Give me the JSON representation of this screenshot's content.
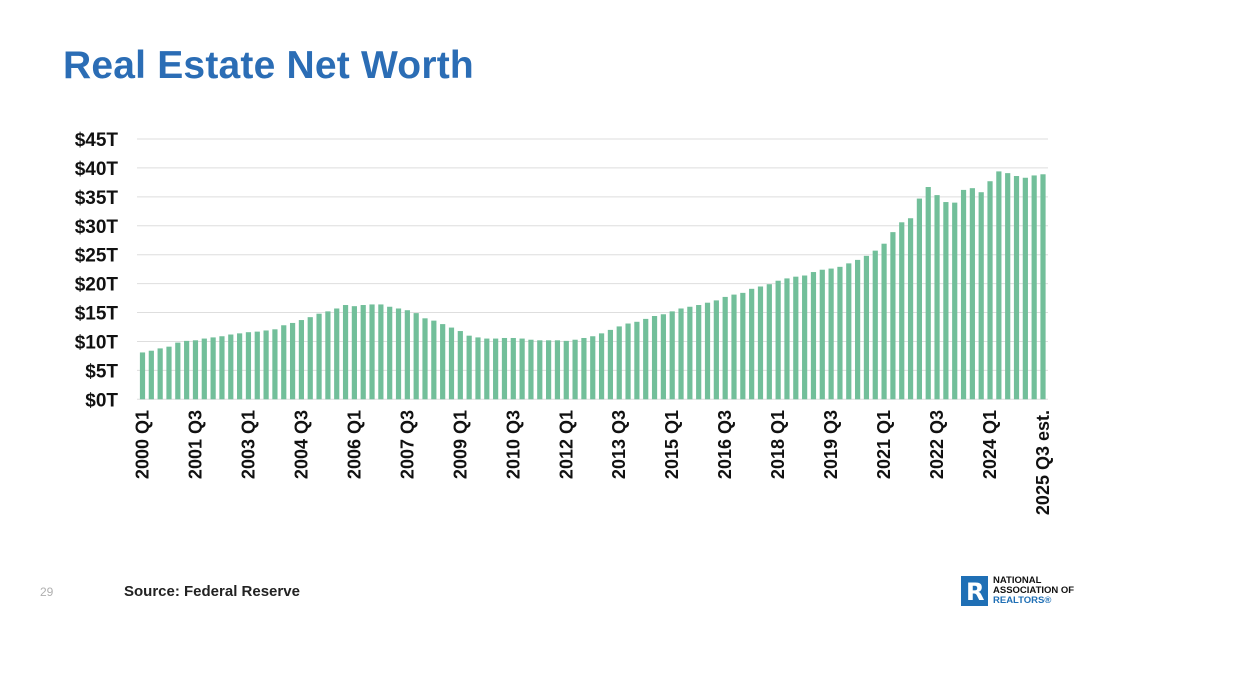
{
  "page_number": "29",
  "source": "Source: Federal Reserve",
  "logo": {
    "letter": "R",
    "line1": "NATIONAL",
    "line2": "ASSOCIATION OF",
    "line3": "REALTORS®"
  },
  "colors": {
    "title": "#2b6db5",
    "bar": "#72bf9a",
    "grid": "#dedede",
    "logo": "#1f6fb5"
  },
  "chart_data": {
    "type": "bar",
    "title": "Real Estate Net Worth",
    "xlabel": "",
    "ylabel": "",
    "ylim": [
      0,
      45
    ],
    "grid": true,
    "y_ticks": [
      0,
      5,
      10,
      15,
      20,
      25,
      30,
      35,
      40,
      45
    ],
    "y_tick_labels": [
      "$0T",
      "$5T",
      "$10T",
      "$15T",
      "$20T",
      "$25T",
      "$30T",
      "$35T",
      "$40T",
      "$45T"
    ],
    "x_tick_labels": [
      "2000 Q1",
      "2001 Q3",
      "2003 Q1",
      "2004 Q3",
      "2006 Q1",
      "2007 Q3",
      "2009 Q1",
      "2010 Q3",
      "2012 Q1",
      "2013 Q3",
      "2015 Q1",
      "2016 Q3",
      "2018 Q1",
      "2019 Q3",
      "2021 Q1",
      "2022 Q3",
      "2024 Q1",
      "2025 Q3 est."
    ],
    "unit": "trillion USD",
    "values": [
      8.1,
      8.4,
      8.8,
      9.1,
      9.8,
      10.1,
      10.2,
      10.5,
      10.7,
      10.9,
      11.2,
      11.4,
      11.6,
      11.7,
      11.9,
      12.1,
      12.8,
      13.2,
      13.7,
      14.2,
      14.8,
      15.2,
      15.7,
      16.3,
      16.1,
      16.3,
      16.4,
      16.4,
      16.0,
      15.7,
      15.4,
      14.9,
      14.0,
      13.6,
      13.0,
      12.4,
      11.8,
      11.0,
      10.7,
      10.5,
      10.5,
      10.6,
      10.6,
      10.5,
      10.3,
      10.2,
      10.2,
      10.2,
      10.1,
      10.3,
      10.6,
      10.9,
      11.4,
      12.0,
      12.6,
      13.1,
      13.4,
      13.9,
      14.4,
      14.7,
      15.2,
      15.7,
      16.0,
      16.3,
      16.7,
      17.1,
      17.7,
      18.1,
      18.4,
      19.1,
      19.5,
      19.9,
      20.5,
      20.9,
      21.2,
      21.4,
      22.0,
      22.4,
      22.6,
      22.9,
      23.5,
      24.1,
      24.8,
      25.7,
      26.9,
      28.9,
      30.6,
      31.3,
      34.7,
      36.7,
      35.3,
      34.1,
      34.0,
      36.2,
      36.5,
      35.8,
      37.7,
      39.4,
      39.1,
      38.6,
      38.3,
      38.7,
      38.9
    ]
  }
}
